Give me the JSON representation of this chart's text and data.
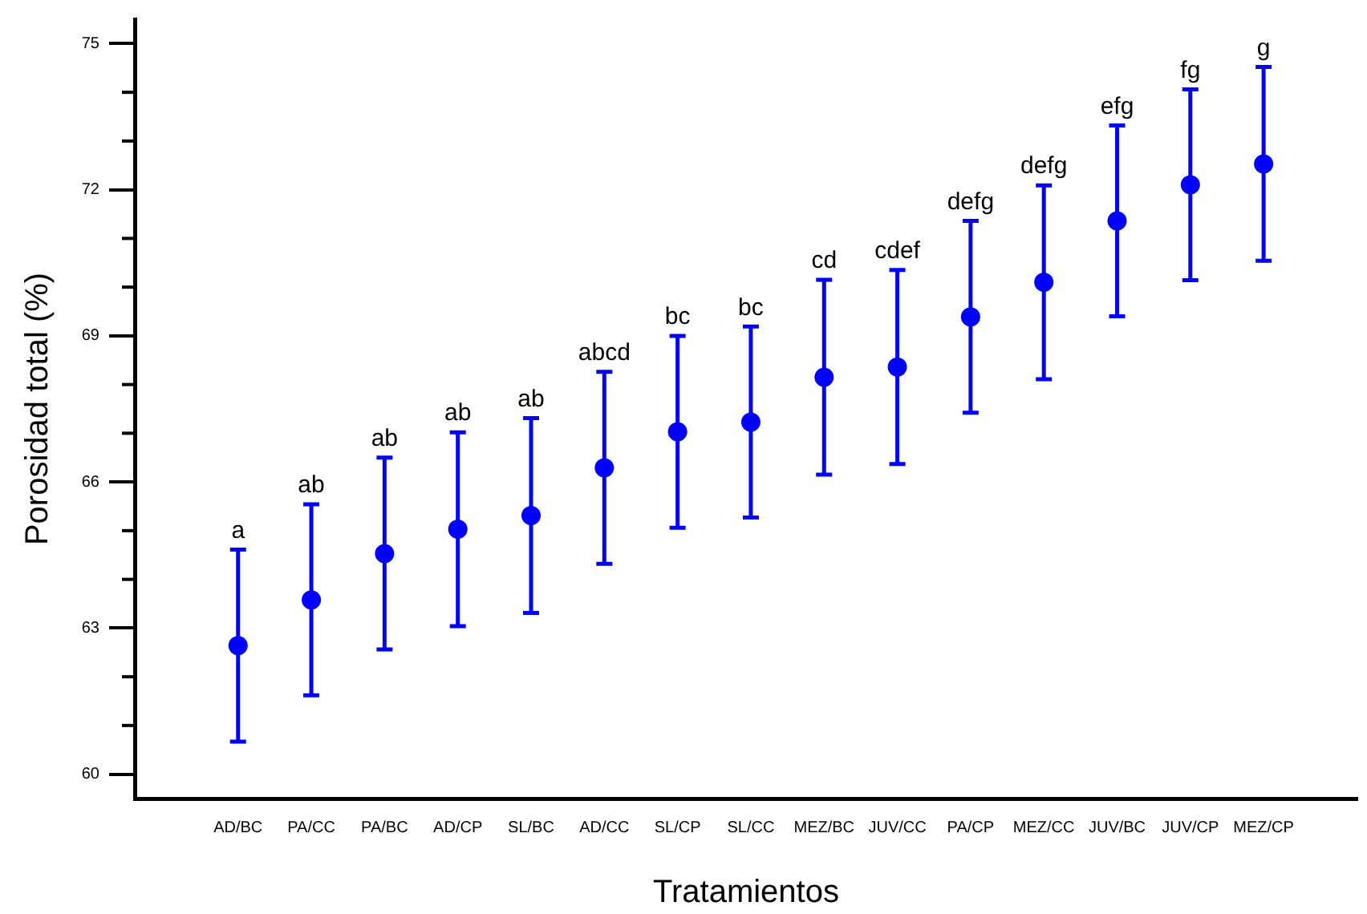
{
  "chart_data": {
    "type": "scatter",
    "xlabel": "Tratamientos",
    "ylabel": "Porosidad total (%)",
    "categories": [
      "AD/BC",
      "PA/CC",
      "PA/BC",
      "AD/CP",
      "SL/BC",
      "AD/CC",
      "SL/CP",
      "SL/CC",
      "MEZ/BC",
      "JUV/CC",
      "PA/CP",
      "MEZ/CC",
      "JUV/BC",
      "JUV/CP",
      "MEZ/CP"
    ],
    "values": [
      62.64,
      63.58,
      64.53,
      65.03,
      65.31,
      66.29,
      67.03,
      67.23,
      68.15,
      68.36,
      69.39,
      70.1,
      71.36,
      72.1,
      72.53
    ],
    "errors": [
      1.97,
      1.96,
      1.97,
      1.99,
      2.0,
      1.97,
      1.97,
      1.96,
      2.0,
      1.99,
      1.97,
      1.99,
      1.96,
      1.96,
      1.99
    ],
    "color": "#0000ff",
    "marker": "circle",
    "ylim": [
      59.5,
      75.5
    ],
    "yticks": [
      60,
      {
        "value": 61,
        "label": null
      },
      {
        "value": 62,
        "label": null
      },
      63,
      {
        "value": 64,
        "label": null
      },
      {
        "value": 65,
        "label": null
      },
      66,
      {
        "value": 67,
        "label": null
      },
      {
        "value": 68,
        "label": null
      },
      69,
      {
        "value": 70,
        "label": null
      },
      {
        "value": 71,
        "label": null
      },
      72,
      {
        "value": 73,
        "label": null
      },
      {
        "value": 74,
        "label": null
      },
      75
    ],
    "grid": false,
    "legend": false,
    "annotations": [
      {
        "text": "a",
        "x": "AD/BC",
        "y": 64.61
      },
      {
        "text": "ab",
        "x": "PA/CC",
        "y": 65.54
      },
      {
        "text": "ab",
        "x": "PA/BC",
        "y": 66.5
      },
      {
        "text": "ab",
        "x": "AD/CP",
        "y": 67.02
      },
      {
        "text": "ab",
        "x": "SL/BC",
        "y": 67.31
      },
      {
        "text": "abcd",
        "x": "AD/CC",
        "y": 68.26
      },
      {
        "text": "bc",
        "x": "SL/CP",
        "y": 69.0
      },
      {
        "text": "bc",
        "x": "SL/CC",
        "y": 69.19
      },
      {
        "text": "cd",
        "x": "MEZ/BC",
        "y": 70.15
      },
      {
        "text": "cdef",
        "x": "JUV/CC",
        "y": 70.35
      },
      {
        "text": "defg",
        "x": "PA/CP",
        "y": 71.36
      },
      {
        "text": "defg",
        "x": "MEZ/CC",
        "y": 72.09
      },
      {
        "text": "efg",
        "x": "JUV/BC",
        "y": 73.32
      },
      {
        "text": "fg",
        "x": "JUV/CP",
        "y": 74.06
      },
      {
        "text": "g",
        "x": "MEZ/CP",
        "y": 74.52
      }
    ]
  }
}
